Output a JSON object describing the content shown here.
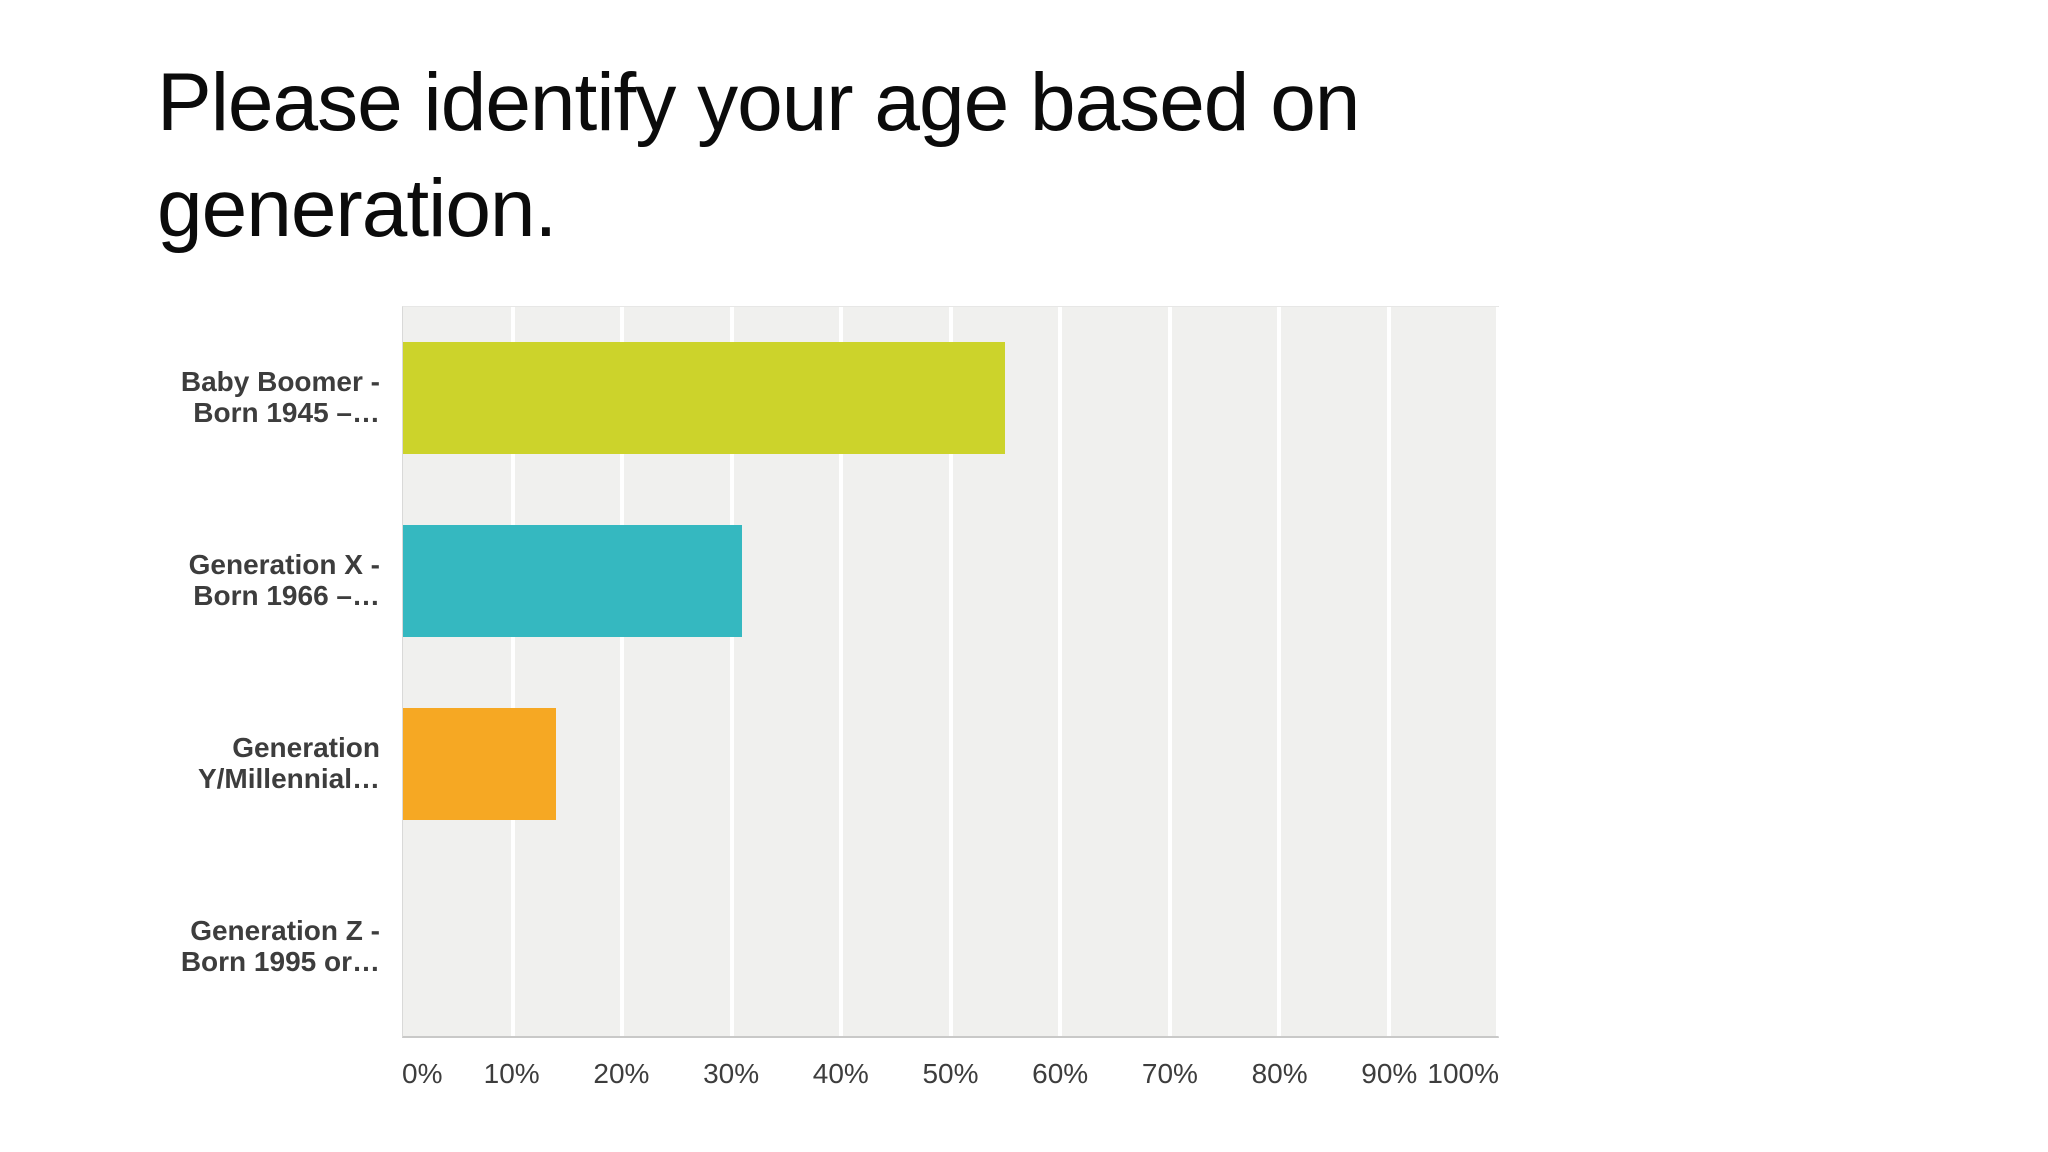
{
  "title": {
    "line1": "Please identify your age based on",
    "line2": "generation."
  },
  "chart_data": {
    "type": "bar",
    "orientation": "horizontal",
    "title": "Please identify your age based on generation.",
    "categories": [
      "Baby Boomer - Born 1945 –…",
      "Generation X - Born 1966 –…",
      "Generation Y/Millennial…",
      "Generation Z - Born 1995 or…"
    ],
    "category_lines": [
      [
        "Baby Boomer -",
        "Born 1945 –…"
      ],
      [
        "Generation X -",
        "Born 1966 –…"
      ],
      [
        "Generation",
        "Y/Millennial…"
      ],
      [
        "Generation Z -",
        "Born 1995 or…"
      ]
    ],
    "values": [
      55,
      31,
      14,
      0
    ],
    "unit": "%",
    "xlim": [
      0,
      100
    ],
    "x_ticks": [
      "0%",
      "10%",
      "20%",
      "30%",
      "40%",
      "50%",
      "60%",
      "70%",
      "80%",
      "90%",
      "100%"
    ],
    "grid": true,
    "legend": "none",
    "bar_colors": [
      "#ccd32b",
      "#35b8c0",
      "#f6a823",
      ""
    ],
    "plot_background": "#f0f0ee",
    "gridline_color": "#ffffff",
    "label_color": "#3d3d3d"
  }
}
